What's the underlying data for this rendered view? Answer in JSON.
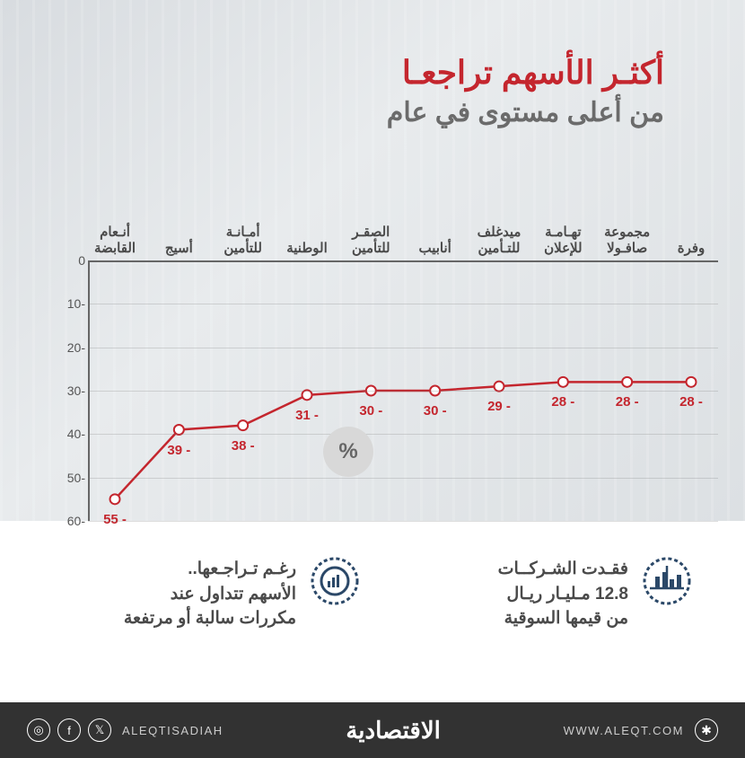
{
  "title": {
    "main": "أكثـر الأسهم تراجعـا",
    "sub": "من أعلى مستوى في عام",
    "main_color": "#c4262e",
    "sub_color": "#6b6b6b"
  },
  "chart": {
    "type": "line",
    "categories": [
      "أنـعام\nالقابضة",
      "أسيج",
      "أمـانـة\nللتأمين",
      "الوطنية",
      "الصقـر\nللتأمين",
      "أنابيب",
      "ميدغلف\nللتـأمين",
      "تهـامـة\nللإعلان",
      "مجموعة\nصافـولا",
      "وفرة"
    ],
    "values": [
      -55,
      -39,
      -38,
      -31,
      -30,
      -30,
      -29,
      -28,
      -28,
      -28
    ],
    "value_labels": [
      "55 -",
      "39 -",
      "38 -",
      "31 -",
      "30 -",
      "30 -",
      "29 -",
      "28 -",
      "28 -",
      "28 -"
    ],
    "ylim": [
      -60,
      0
    ],
    "ytick_step": 10,
    "yticks": [
      "0",
      "10-",
      "20-",
      "30-",
      "40-",
      "50-",
      "60-"
    ],
    "line_color": "#c4262e",
    "line_width": 2.5,
    "marker_fill": "#ffffff",
    "marker_stroke": "#c4262e",
    "marker_radius": 5.5,
    "label_color": "#c4262e",
    "xlabel_color": "#4a4a4a",
    "ytick_color": "#555555",
    "percent_label": "%"
  },
  "info": {
    "box1": {
      "line1": "فقـدت الشـركــات",
      "highlight": "12.8 مـليـار ريـال",
      "line3": "من قيمها السوقية"
    },
    "box2": {
      "line1": "رغـم تـراجـعها..",
      "line2": "الأسهم  تتداول عند",
      "line3": "مكررات سالبة أو مرتفعة"
    },
    "icon_color": "#2b4868"
  },
  "footer": {
    "handle": "ALEQTISADIAH",
    "brand": "الاقتصادية",
    "url": "WWW.ALEQT.COM",
    "bg": "#323232"
  }
}
